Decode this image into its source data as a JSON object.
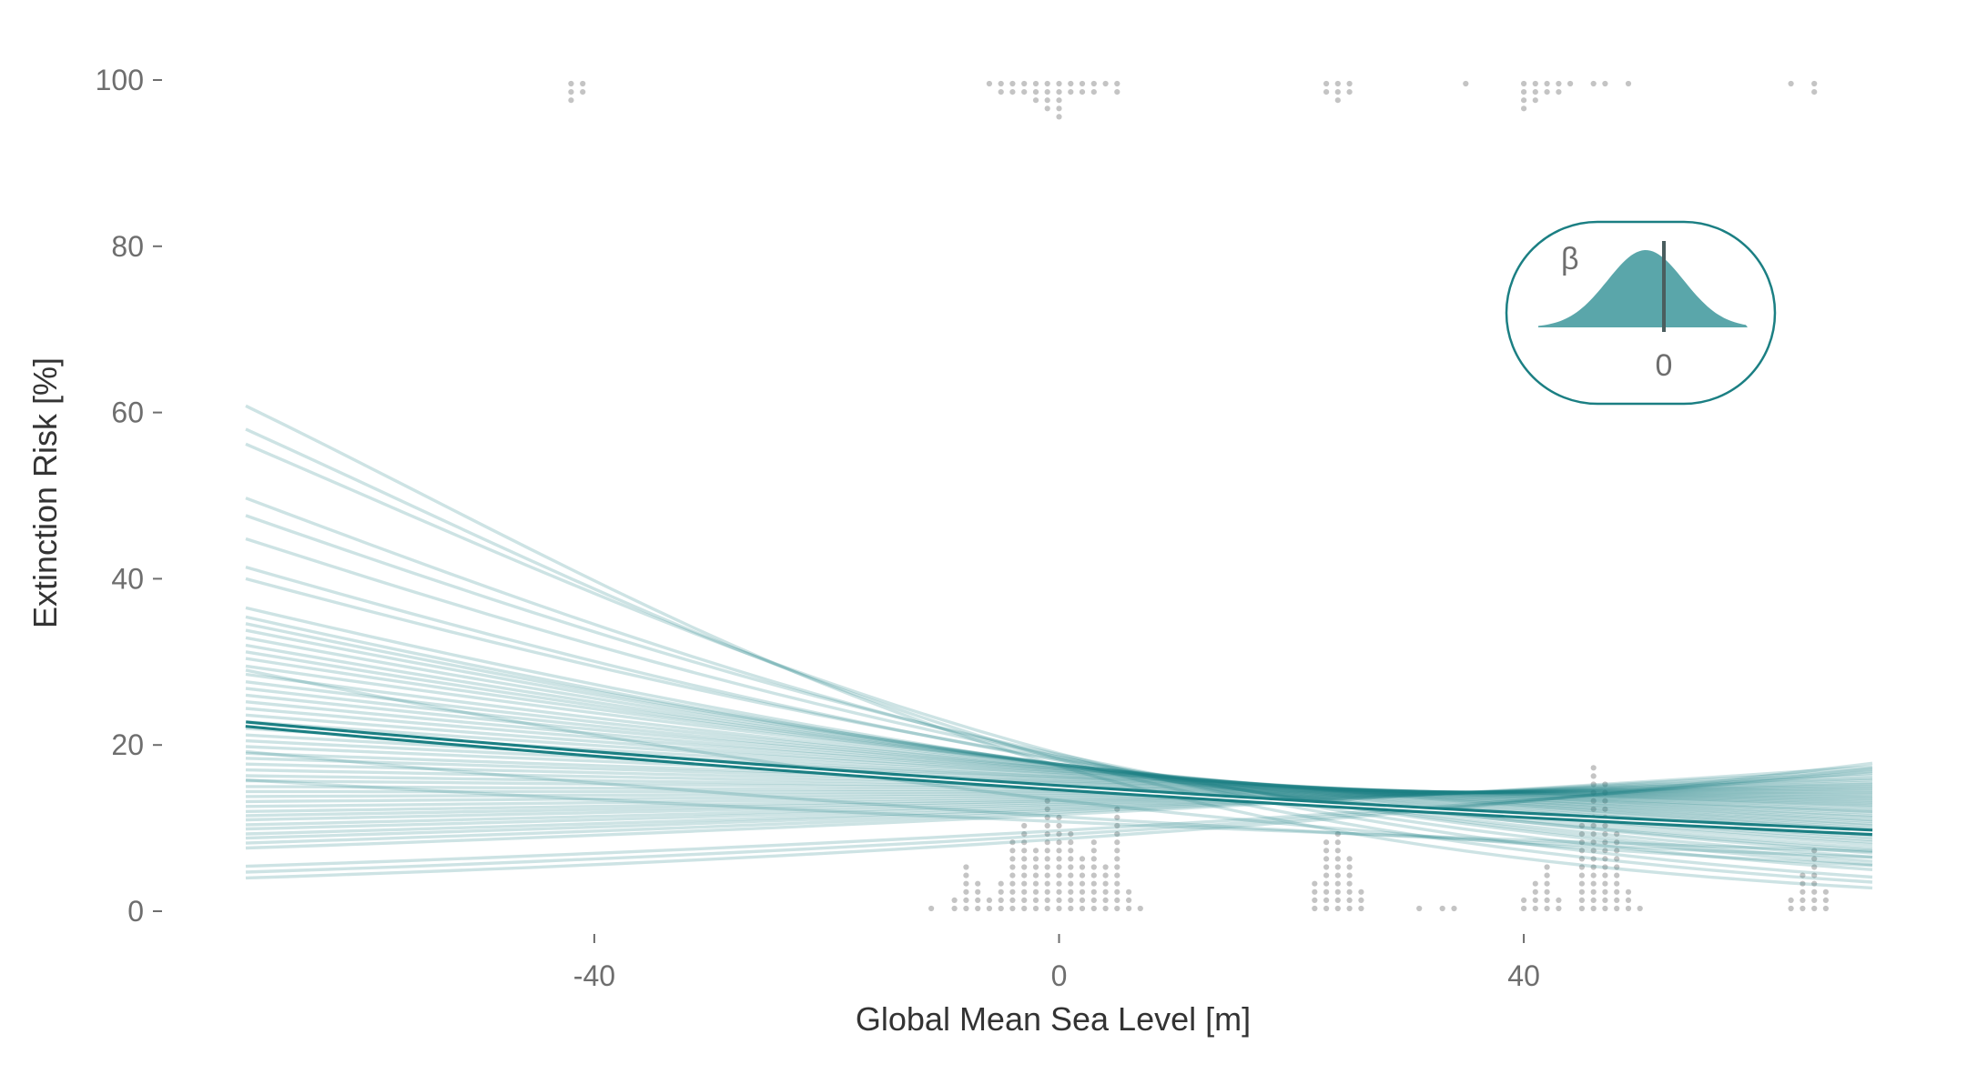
{
  "chart_data": {
    "type": "line",
    "title": "",
    "xlabel": "Global Mean Sea Level [m]",
    "ylabel": "Extinction Risk [%]",
    "xlim": [
      -70,
      70
    ],
    "ylim": [
      0,
      100
    ],
    "xticks": [
      -40,
      0,
      40
    ],
    "yticks": [
      0,
      20,
      40,
      60,
      80,
      100
    ],
    "grid": false,
    "legend": "none",
    "colors": {
      "posterior": "#1b7f83",
      "fill": "#5aa6aa",
      "points": "#c4c4c4",
      "ticks": "#6e6e6e"
    },
    "mean_curve": {
      "x": [
        -70,
        -40,
        0,
        40,
        70
      ],
      "y": [
        22.5,
        18.3,
        13.8,
        10.8,
        9.5
      ]
    },
    "posterior_draws": {
      "x_range": [
        -70,
        70
      ],
      "endpoints": [
        [
          60.8,
          2.8
        ],
        [
          58.0,
          3.5
        ],
        [
          56.2,
          4.1
        ],
        [
          49.7,
          5.0
        ],
        [
          47.6,
          5.6
        ],
        [
          44.8,
          6.0
        ],
        [
          41.4,
          6.5
        ],
        [
          40.0,
          7.0
        ],
        [
          36.5,
          7.3
        ],
        [
          35.4,
          7.6
        ],
        [
          34.6,
          8.0
        ],
        [
          33.8,
          8.3
        ],
        [
          32.9,
          8.6
        ],
        [
          32.0,
          8.9
        ],
        [
          31.2,
          9.2
        ],
        [
          30.4,
          9.5
        ],
        [
          29.5,
          9.8
        ],
        [
          29.0,
          5.5
        ],
        [
          28.5,
          10.0
        ],
        [
          27.6,
          10.3
        ],
        [
          26.8,
          10.5
        ],
        [
          26.0,
          10.8
        ],
        [
          25.2,
          11.0
        ],
        [
          24.4,
          11.3
        ],
        [
          23.6,
          11.5
        ],
        [
          22.8,
          11.8
        ],
        [
          22.0,
          12.0
        ],
        [
          21.2,
          12.2
        ],
        [
          20.5,
          12.5
        ],
        [
          19.8,
          12.7
        ],
        [
          19.2,
          6.5
        ],
        [
          19.0,
          12.9
        ],
        [
          18.4,
          13.1
        ],
        [
          17.7,
          13.3
        ],
        [
          17.0,
          13.5
        ],
        [
          16.3,
          13.7
        ],
        [
          15.8,
          7.2
        ],
        [
          15.7,
          13.9
        ],
        [
          15.0,
          14.1
        ],
        [
          14.4,
          14.3
        ],
        [
          13.8,
          14.5
        ],
        [
          13.2,
          14.7
        ],
        [
          12.6,
          14.9
        ],
        [
          12.0,
          15.1
        ],
        [
          11.5,
          15.3
        ],
        [
          11.0,
          15.5
        ],
        [
          10.4,
          15.8
        ],
        [
          9.9,
          16.0
        ],
        [
          9.3,
          16.3
        ],
        [
          8.8,
          16.6
        ],
        [
          8.2,
          17.0
        ],
        [
          7.6,
          17.4
        ],
        [
          5.4,
          16.8
        ],
        [
          4.7,
          17.2
        ],
        [
          4.0,
          17.8
        ]
      ]
    },
    "occurrence_points": {
      "bottom_columns": [
        [
          -11,
          1
        ],
        [
          -9,
          2
        ],
        [
          -8,
          6
        ],
        [
          -7,
          4
        ],
        [
          -6,
          2
        ],
        [
          -5,
          4
        ],
        [
          -4,
          9
        ],
        [
          -3,
          11
        ],
        [
          -2,
          8
        ],
        [
          -1,
          14
        ],
        [
          0,
          12
        ],
        [
          1,
          10
        ],
        [
          2,
          7
        ],
        [
          3,
          9
        ],
        [
          4,
          6
        ],
        [
          5,
          13
        ],
        [
          6,
          3
        ],
        [
          7,
          1
        ],
        [
          22,
          4
        ],
        [
          23,
          9
        ],
        [
          24,
          10
        ],
        [
          25,
          7
        ],
        [
          26,
          3
        ],
        [
          31,
          1
        ],
        [
          33,
          1
        ],
        [
          34,
          1
        ],
        [
          40,
          2
        ],
        [
          41,
          4
        ],
        [
          42,
          6
        ],
        [
          43,
          2
        ],
        [
          45,
          12
        ],
        [
          46,
          18
        ],
        [
          47,
          16
        ],
        [
          48,
          10
        ],
        [
          49,
          3
        ],
        [
          50,
          1
        ],
        [
          63,
          2
        ],
        [
          64,
          5
        ],
        [
          65,
          8
        ],
        [
          66,
          3
        ]
      ],
      "top_columns": [
        [
          -42,
          3
        ],
        [
          -41,
          2
        ],
        [
          -6,
          1
        ],
        [
          -5,
          2
        ],
        [
          -4,
          2
        ],
        [
          -3,
          2
        ],
        [
          -2,
          3
        ],
        [
          -1,
          4
        ],
        [
          0,
          5
        ],
        [
          1,
          2
        ],
        [
          2,
          2
        ],
        [
          3,
          2
        ],
        [
          4,
          1
        ],
        [
          5,
          2
        ],
        [
          23,
          2
        ],
        [
          24,
          3
        ],
        [
          25,
          2
        ],
        [
          35,
          1
        ],
        [
          40,
          4
        ],
        [
          41,
          3
        ],
        [
          42,
          2
        ],
        [
          43,
          2
        ],
        [
          44,
          1
        ],
        [
          46,
          1
        ],
        [
          47,
          1
        ],
        [
          49,
          1
        ],
        [
          63,
          1
        ],
        [
          65,
          2
        ]
      ]
    },
    "inset": {
      "label": "β",
      "tick_label": "0"
    }
  }
}
